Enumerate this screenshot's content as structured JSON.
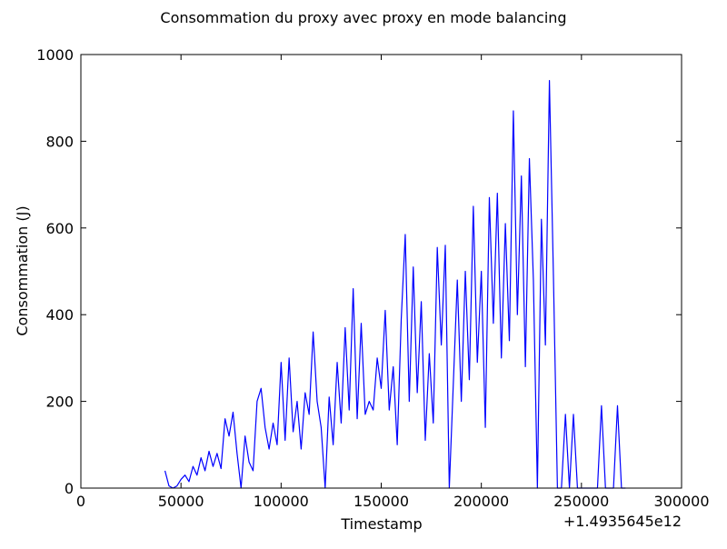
{
  "chart_data": {
    "type": "line",
    "title": "Consommation du proxy avec proxy en mode balancing",
    "x_label": "Timestamp",
    "y_label": "Consommation (J)",
    "x_offset_label": "+1.4935645e12",
    "xlim": [
      0,
      300000
    ],
    "ylim": [
      0,
      1000
    ],
    "xticks": [
      0,
      50000,
      100000,
      150000,
      200000,
      250000,
      300000
    ],
    "yticks": [
      0,
      200,
      400,
      600,
      800,
      1000
    ],
    "grid": false,
    "x": [
      42000,
      44000,
      46000,
      48000,
      50000,
      52000,
      54000,
      56000,
      58000,
      60000,
      62000,
      64000,
      66000,
      68000,
      70000,
      72000,
      74000,
      76000,
      78000,
      80000,
      82000,
      84000,
      86000,
      88000,
      90000,
      92000,
      94000,
      96000,
      98000,
      100000,
      102000,
      104000,
      106000,
      108000,
      110000,
      112000,
      114000,
      116000,
      118000,
      120000,
      122000,
      124000,
      126000,
      128000,
      130000,
      132000,
      134000,
      136000,
      138000,
      140000,
      142000,
      144000,
      146000,
      148000,
      150000,
      152000,
      154000,
      156000,
      158000,
      160000,
      162000,
      164000,
      166000,
      168000,
      170000,
      172000,
      174000,
      176000,
      178000,
      180000,
      182000,
      184000,
      186000,
      188000,
      190000,
      192000,
      194000,
      196000,
      198000,
      200000,
      202000,
      204000,
      206000,
      208000,
      210000,
      212000,
      214000,
      216000,
      218000,
      220000,
      222000,
      224000,
      226000,
      228000,
      230000,
      232000,
      234000,
      236000,
      238000,
      240000,
      242000,
      244000,
      246000,
      248000,
      250000,
      252000,
      254000,
      256000,
      258000,
      260000,
      262000,
      264000,
      266000,
      268000,
      270000,
      272000
    ],
    "series": [
      {
        "name": "Consommation",
        "color": "#0000ff",
        "values": [
          40,
          5,
          0,
          5,
          20,
          30,
          15,
          50,
          30,
          70,
          40,
          85,
          50,
          80,
          45,
          160,
          120,
          175,
          80,
          0,
          120,
          60,
          40,
          200,
          230,
          140,
          90,
          150,
          100,
          290,
          110,
          300,
          130,
          200,
          90,
          220,
          170,
          360,
          200,
          140,
          0,
          210,
          100,
          290,
          150,
          370,
          180,
          460,
          160,
          380,
          170,
          200,
          180,
          300,
          230,
          410,
          180,
          280,
          100,
          390,
          585,
          200,
          510,
          220,
          430,
          110,
          310,
          150,
          555,
          330,
          560,
          0,
          240,
          480,
          200,
          500,
          250,
          650,
          290,
          500,
          140,
          670,
          380,
          680,
          300,
          610,
          340,
          870,
          400,
          720,
          280,
          760,
          480,
          0,
          620,
          330,
          940,
          490,
          0,
          0,
          170,
          0,
          170,
          0,
          0,
          0,
          0,
          0,
          0,
          190,
          0,
          0,
          0,
          190,
          0,
          0
        ]
      }
    ]
  }
}
